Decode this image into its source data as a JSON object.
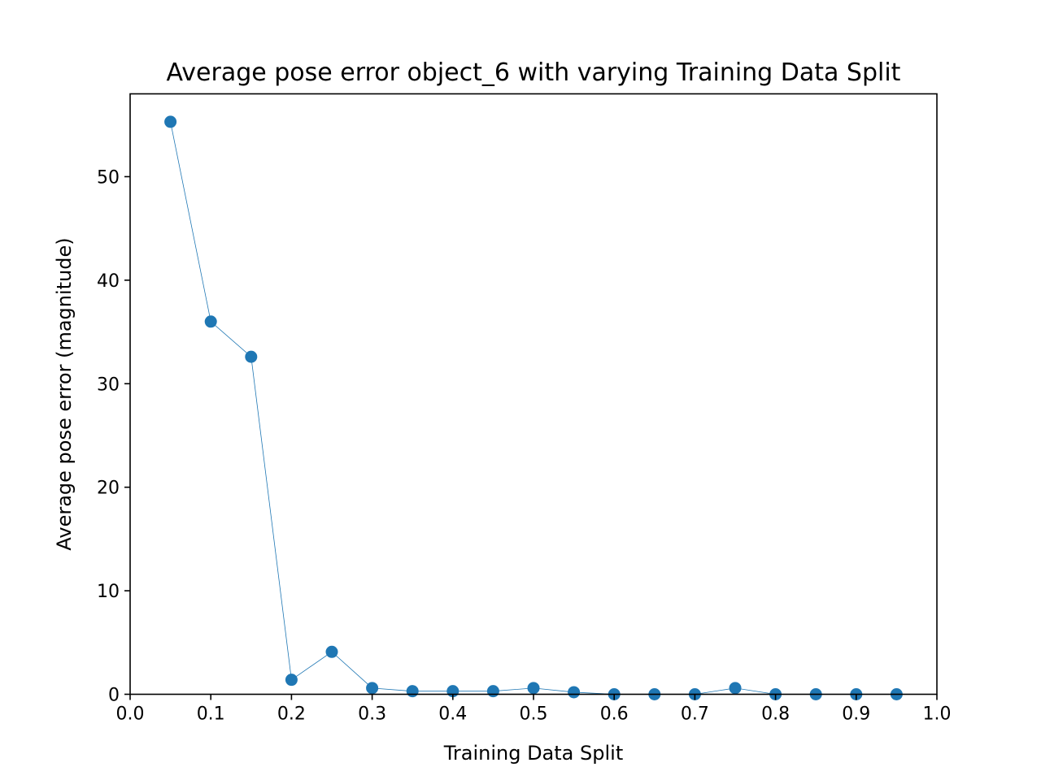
{
  "chart_data": {
    "type": "line",
    "title": "Average pose error object_6 with varying Training Data Split",
    "xlabel": "Training Data Split",
    "ylabel": "Average pose error (magnitude)",
    "xlim": [
      0.0,
      1.0
    ],
    "ylim": [
      0,
      58
    ],
    "xticks": [
      "0.0",
      "0.1",
      "0.2",
      "0.3",
      "0.4",
      "0.5",
      "0.6",
      "0.7",
      "0.8",
      "0.9",
      "1.0"
    ],
    "yticks": [
      "0",
      "10",
      "20",
      "30",
      "40",
      "50"
    ],
    "grid": false,
    "series": [
      {
        "color": "#1f77b4",
        "x": [
          0.05,
          0.1,
          0.15,
          0.2,
          0.25,
          0.3,
          0.35,
          0.4,
          0.45,
          0.5,
          0.55,
          0.6,
          0.65,
          0.7,
          0.75,
          0.8,
          0.85,
          0.9,
          0.95
        ],
        "y": [
          55.3,
          36.0,
          32.6,
          1.4,
          4.1,
          0.6,
          0.3,
          0.3,
          0.3,
          0.6,
          0.2,
          0.0,
          0.0,
          0.0,
          0.6,
          0.0,
          0.0,
          0.0,
          0.0
        ]
      }
    ]
  }
}
